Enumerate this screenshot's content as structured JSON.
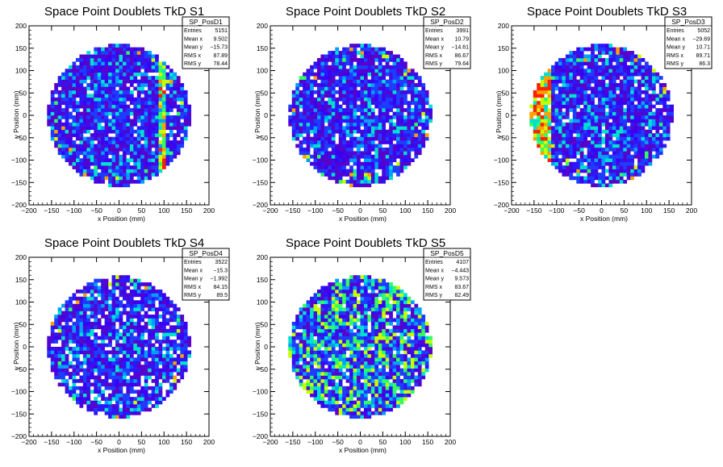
{
  "chart_data": [
    {
      "type": "heatmap",
      "title": "Space Point Doublets TkD S1",
      "xlabel": "x Position (mm)",
      "ylabel": "y Position (mm)",
      "xlim": [
        -200,
        200
      ],
      "ylim": [
        -200,
        200
      ],
      "xticks": [
        -200,
        -150,
        -100,
        -50,
        0,
        50,
        100,
        150,
        200
      ],
      "yticks": [
        -200,
        -150,
        -100,
        -50,
        0,
        50,
        100,
        150,
        200
      ],
      "xtick_labels": [
        "−200",
        "−150",
        "−100",
        "−50",
        "0",
        "50",
        "100",
        "150",
        "200"
      ],
      "ytick_labels": [
        "−200",
        "−150",
        "−100",
        "−50",
        "0",
        "50",
        "100",
        "150",
        "200"
      ],
      "detector_radius_mm": 160,
      "feature": "stripe-x95",
      "stats": {
        "name": "SP_PosD1",
        "rows": [
          {
            "label": "Entries",
            "value": "5151"
          },
          {
            "label": "Mean x",
            "value": "9.502"
          },
          {
            "label": "Mean y",
            "value": "−15.73"
          },
          {
            "label": "RMS x",
            "value": "87.89"
          },
          {
            "label": "RMS y",
            "value": "78.44"
          }
        ]
      }
    },
    {
      "type": "heatmap",
      "title": "Space Point Doublets TkD S2",
      "xlabel": "x Position (mm)",
      "ylabel": "y Position (mm)",
      "xlim": [
        -200,
        200
      ],
      "ylim": [
        -200,
        200
      ],
      "xticks": [
        -200,
        -150,
        -100,
        -50,
        0,
        50,
        100,
        150,
        200
      ],
      "yticks": [
        -200,
        -150,
        -100,
        -50,
        0,
        50,
        100,
        150,
        200
      ],
      "xtick_labels": [
        "−200",
        "−150",
        "−100",
        "−50",
        "0",
        "50",
        "100",
        "150",
        "200"
      ],
      "ytick_labels": [
        "−200",
        "−150",
        "−100",
        "−50",
        "0",
        "50",
        "100",
        "150",
        "200"
      ],
      "detector_radius_mm": 160,
      "feature": "none",
      "stats": {
        "name": "SP_PosD2",
        "rows": [
          {
            "label": "Entries",
            "value": "3991"
          },
          {
            "label": "Mean x",
            "value": "10.79"
          },
          {
            "label": "Mean y",
            "value": "−14.61"
          },
          {
            "label": "RMS x",
            "value": "86.67"
          },
          {
            "label": "RMS y",
            "value": "79.64"
          }
        ]
      }
    },
    {
      "type": "heatmap",
      "title": "Space Point Doublets TkD S3",
      "xlabel": "x Position (mm)",
      "ylabel": "y Position (mm)",
      "xlim": [
        -200,
        200
      ],
      "ylim": [
        -200,
        200
      ],
      "xticks": [
        -200,
        -150,
        -100,
        -50,
        0,
        50,
        100,
        150,
        200
      ],
      "yticks": [
        -200,
        -150,
        -100,
        -50,
        0,
        50,
        100,
        150,
        200
      ],
      "xtick_labels": [
        "−200",
        "−150",
        "−100",
        "−50",
        "0",
        "50",
        "100",
        "150",
        "200"
      ],
      "ytick_labels": [
        "−200",
        "−150",
        "−100",
        "−50",
        "0",
        "50",
        "100",
        "150",
        "200"
      ],
      "detector_radius_mm": 160,
      "feature": "left-hot",
      "stats": {
        "name": "SP_PosD3",
        "rows": [
          {
            "label": "Entries",
            "value": "5052"
          },
          {
            "label": "Mean x",
            "value": "−29.69"
          },
          {
            "label": "Mean y",
            "value": "10.71"
          },
          {
            "label": "RMS x",
            "value": "89.71"
          },
          {
            "label": "RMS y",
            "value": "86.3"
          }
        ]
      }
    },
    {
      "type": "heatmap",
      "title": "Space Point Doublets TkD S4",
      "xlabel": "x Position (mm)",
      "ylabel": "y Position (mm)",
      "xlim": [
        -200,
        200
      ],
      "ylim": [
        -200,
        200
      ],
      "xticks": [
        -200,
        -150,
        -100,
        -50,
        0,
        50,
        100,
        150,
        200
      ],
      "yticks": [
        -200,
        -150,
        -100,
        -50,
        0,
        50,
        100,
        150,
        200
      ],
      "xtick_labels": [
        "−200",
        "−150",
        "−100",
        "−50",
        "0",
        "50",
        "100",
        "150",
        "200"
      ],
      "ytick_labels": [
        "−200",
        "−150",
        "−100",
        "−50",
        "0",
        "50",
        "100",
        "150",
        "200"
      ],
      "detector_radius_mm": 160,
      "feature": "sparse",
      "stats": {
        "name": "SP_PosD4",
        "rows": [
          {
            "label": "Entries",
            "value": "3522"
          },
          {
            "label": "Mean x",
            "value": "−15.3"
          },
          {
            "label": "Mean y",
            "value": "−1.992"
          },
          {
            "label": "RMS x",
            "value": "84.15"
          },
          {
            "label": "RMS y",
            "value": "89.5"
          }
        ]
      }
    },
    {
      "type": "heatmap",
      "title": "Space Point Doublets TkD S5",
      "xlabel": "x Position (mm)",
      "ylabel": "y Position (mm)",
      "xlim": [
        -200,
        200
      ],
      "ylim": [
        -200,
        200
      ],
      "xticks": [
        -200,
        -150,
        -100,
        -50,
        0,
        50,
        100,
        150,
        200
      ],
      "yticks": [
        -200,
        -150,
        -100,
        -50,
        0,
        50,
        100,
        150,
        200
      ],
      "xtick_labels": [
        "−200",
        "−150",
        "−100",
        "−50",
        "0",
        "50",
        "100",
        "150",
        "200"
      ],
      "ytick_labels": [
        "−200",
        "−150",
        "−100",
        "−50",
        "0",
        "50",
        "100",
        "150",
        "200"
      ],
      "detector_radius_mm": 160,
      "feature": "greenish",
      "stats": {
        "name": "SP_PosD5",
        "rows": [
          {
            "label": "Entries",
            "value": "4107"
          },
          {
            "label": "Mean x",
            "value": "−4.443"
          },
          {
            "label": "Mean y",
            "value": "9.573"
          },
          {
            "label": "RMS x",
            "value": "83.67"
          },
          {
            "label": "RMS y",
            "value": "82.49"
          }
        ]
      }
    }
  ],
  "colors": {
    "background": "#ffffff",
    "axis": "#000000",
    "palette": [
      "#5a00c8",
      "#3a00f0",
      "#1e3cff",
      "#00a0ff",
      "#00e0d0",
      "#30ff60",
      "#c8ff00",
      "#ffa000",
      "#ff2000"
    ]
  }
}
